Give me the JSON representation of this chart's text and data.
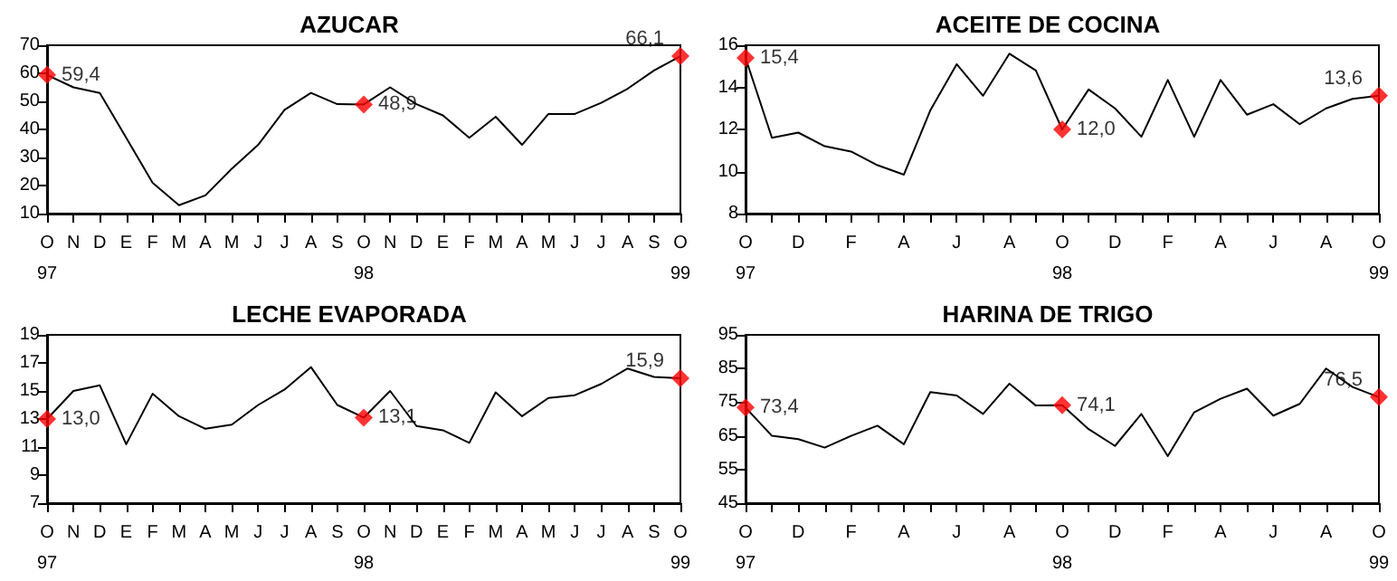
{
  "chart_data": [
    {
      "type": "line",
      "title": "AZUCAR",
      "categories": [
        "O\n97",
        "N",
        "D",
        "E",
        "F",
        "M",
        "A",
        "M",
        "J",
        "J",
        "A",
        "S",
        "O\n98",
        "N",
        "D",
        "E",
        "F",
        "M",
        "A",
        "M",
        "J",
        "J",
        "A",
        "S",
        "O\n99"
      ],
      "ylim": [
        10,
        70
      ],
      "yticks": [
        10,
        20,
        30,
        40,
        50,
        60,
        70
      ],
      "grid": false,
      "legend": false,
      "marker": "none",
      "series": [
        {
          "color": "#000000",
          "values": [
            59.4,
            55,
            53,
            37,
            21,
            13,
            16.5,
            26,
            34.5,
            47,
            53,
            49,
            48.9,
            55,
            49,
            45,
            37,
            44.5,
            34.5,
            45.5,
            45.5,
            49.5,
            54.5,
            61,
            66.1
          ]
        },
        {
          "type": "scatter",
          "marker": "diamond",
          "color": "#ff0000",
          "x": [
            "O\n97",
            "O\n98",
            "O\n99"
          ],
          "values": [
            59.4,
            48.9,
            66.1
          ],
          "value_labels": [
            "59,4",
            "48,9",
            "66,1"
          ]
        }
      ]
    },
    {
      "type": "line",
      "title": "ACEITE DE COCINA",
      "categories": [
        "O\n97",
        null,
        "D",
        null,
        "F",
        null,
        "A",
        null,
        "J",
        null,
        "A",
        null,
        "O\n98",
        null,
        "D",
        null,
        "F",
        null,
        "A",
        null,
        "J",
        null,
        "A",
        null,
        "O\n99"
      ],
      "ylim": [
        8,
        16
      ],
      "yticks": [
        8,
        10,
        12,
        14,
        16
      ],
      "grid": false,
      "legend": false,
      "marker": "none",
      "series": [
        {
          "color": "#000000",
          "values": [
            15.4,
            11.6,
            11.85,
            11.2,
            10.95,
            10.3,
            9.85,
            12.9,
            15.1,
            13.6,
            15.6,
            14.8,
            12.0,
            13.9,
            13.0,
            11.65,
            14.35,
            11.65,
            14.35,
            12.7,
            13.2,
            12.25,
            13.0,
            13.45,
            13.6
          ]
        },
        {
          "type": "scatter",
          "marker": "diamond",
          "color": "#ff0000",
          "x": [
            "O\n97",
            "O\n98",
            "O\n99"
          ],
          "values": [
            15.4,
            12.0,
            13.6
          ],
          "value_labels": [
            "15,4",
            "12,0",
            "13,6"
          ]
        }
      ]
    },
    {
      "type": "line",
      "title": "LECHE EVAPORADA",
      "categories": [
        "O\n97",
        "N",
        "D",
        "E",
        "F",
        "M",
        "A",
        "M",
        "J",
        "J",
        "A",
        "S",
        "O\n98",
        "N",
        "D",
        "E",
        "F",
        "M",
        "A",
        "M",
        "J",
        "J",
        "A",
        "S",
        "O\n99"
      ],
      "ylim": [
        7,
        19
      ],
      "yticks": [
        7,
        9,
        11,
        13,
        15,
        17,
        19
      ],
      "grid": false,
      "legend": false,
      "marker": "none",
      "series": [
        {
          "color": "#000000",
          "values": [
            13.0,
            15.0,
            15.4,
            11.2,
            14.8,
            13.2,
            12.3,
            12.6,
            14.0,
            15.1,
            16.7,
            14.0,
            13.1,
            15.0,
            12.5,
            12.2,
            11.3,
            14.9,
            13.2,
            14.5,
            14.7,
            15.5,
            16.6,
            16.0,
            15.9
          ]
        },
        {
          "type": "scatter",
          "marker": "diamond",
          "color": "#ff0000",
          "x": [
            "O\n97",
            "O\n98",
            "O\n99"
          ],
          "values": [
            13.0,
            13.1,
            15.9
          ],
          "value_labels": [
            "13,0",
            "13,1",
            "15,9"
          ]
        }
      ]
    },
    {
      "type": "line",
      "title": "HARINA DE TRIGO",
      "categories": [
        "O\n97",
        null,
        "D",
        null,
        "F",
        null,
        "A",
        null,
        "J",
        null,
        "A",
        null,
        "O\n98",
        null,
        "D",
        null,
        "F",
        null,
        "A",
        null,
        "J",
        null,
        "A",
        null,
        "O\n99"
      ],
      "ylim": [
        45,
        95
      ],
      "yticks": [
        45,
        55,
        65,
        75,
        85,
        95
      ],
      "grid": false,
      "legend": false,
      "marker": "none",
      "series": [
        {
          "color": "#000000",
          "values": [
            73.4,
            65,
            64,
            61.5,
            65,
            68,
            62.5,
            78,
            77,
            71.5,
            80.5,
            74,
            74.1,
            67,
            62,
            71.5,
            59,
            72,
            76,
            79,
            71,
            74.5,
            85,
            79.5,
            76.5
          ]
        },
        {
          "type": "scatter",
          "marker": "diamond",
          "color": "#ff0000",
          "x": [
            "O\n97",
            "O\n98",
            "O\n99"
          ],
          "values": [
            73.4,
            74.1,
            76.5
          ],
          "value_labels": [
            "73,4",
            "74,1",
            "76,5"
          ]
        }
      ]
    }
  ]
}
